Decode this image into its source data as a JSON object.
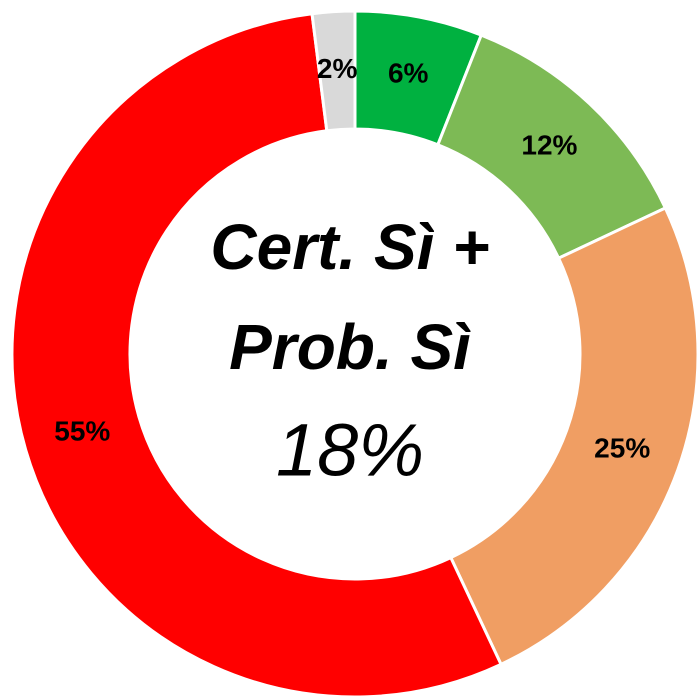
{
  "chart_data": {
    "type": "donut",
    "categories": [
      null,
      null,
      null,
      null,
      null
    ],
    "values": [
      6,
      12,
      25,
      55,
      2
    ],
    "value_labels": [
      "6%",
      "12%",
      "25%",
      "55%",
      "2%"
    ],
    "colors": [
      "#00b140",
      "#7dba55",
      "#f09e63",
      "#ff0000",
      "#d9d9d9"
    ],
    "annotations": [
      "Cert. Sì +",
      "Prob. Sì",
      "18%"
    ]
  }
}
